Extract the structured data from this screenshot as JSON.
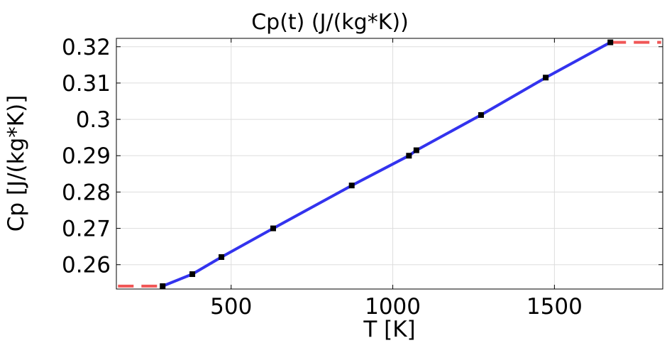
{
  "chart_data": {
    "type": "line",
    "title": "Cp(t) (J/(kg*K))",
    "xlabel": "T [K]",
    "ylabel": "Cp [J/(kg*K)]",
    "xlim": [
      145,
      1835
    ],
    "ylim": [
      0.2533,
      0.3223
    ],
    "x_ticks": [
      500,
      1000,
      1500
    ],
    "x_tick_labels": [
      "500",
      "1000",
      "1500"
    ],
    "y_ticks": [
      0.26,
      0.27,
      0.28,
      0.29,
      0.3,
      0.31,
      0.32
    ],
    "y_tick_labels": [
      "0.26",
      "0.27",
      "0.28",
      "0.29",
      "0.3",
      "0.31",
      "0.32"
    ],
    "grid": true,
    "series": [
      {
        "role": "interpolated",
        "color": "#3333ee",
        "style": "solid",
        "x": [
          288.15,
          380,
          470,
          630,
          873,
          1050,
          1073,
          1273,
          1473,
          1673
        ],
        "y": [
          0.2541,
          0.2574,
          0.2621,
          0.27,
          0.2818,
          0.29,
          0.2915,
          0.3012,
          0.3115,
          0.3212
        ]
      },
      {
        "role": "extrapolated-left",
        "color": "#ee4444",
        "style": "dashed",
        "x": [
          150,
          288.15
        ],
        "y": [
          0.2541,
          0.2541
        ]
      },
      {
        "role": "extrapolated-right",
        "color": "#ee4444",
        "style": "dashed",
        "x": [
          1673,
          1830
        ],
        "y": [
          0.3212,
          0.3212
        ]
      }
    ],
    "points": {
      "marker": "square",
      "color": "#000000",
      "x": [
        288.15,
        380,
        470,
        630,
        873,
        1050,
        1073,
        1273,
        1473,
        1673
      ],
      "y": [
        0.2541,
        0.2574,
        0.2621,
        0.27,
        0.2818,
        0.29,
        0.2915,
        0.3012,
        0.3115,
        0.3212
      ]
    }
  }
}
